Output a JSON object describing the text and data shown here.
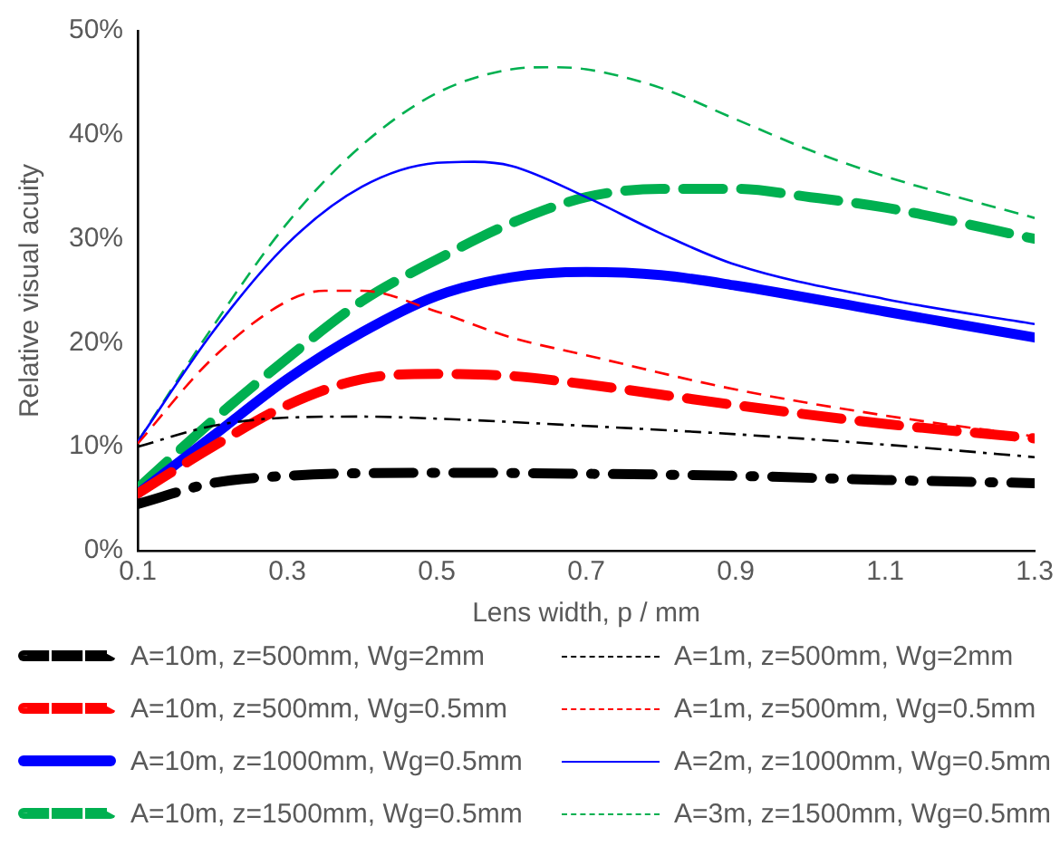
{
  "chart_data": {
    "type": "line",
    "xlabel": "Lens width, p / mm",
    "ylabel": "Relative visual acuity",
    "xlim": [
      0.1,
      1.3
    ],
    "xticks": [
      0.1,
      0.3,
      0.5,
      0.7,
      0.9,
      1.1,
      1.3
    ],
    "ylim": [
      0,
      50
    ],
    "yticks": [
      {
        "value": 0,
        "label": "0%"
      },
      {
        "value": 10,
        "label": "10%"
      },
      {
        "value": 20,
        "label": "20%"
      },
      {
        "value": 30,
        "label": "30%"
      },
      {
        "value": 40,
        "label": "40%"
      },
      {
        "value": 50,
        "label": "50%"
      }
    ],
    "grid": false,
    "legend": "bottom",
    "marker": "none",
    "series": [
      {
        "name": "A=10m, z=500mm, Wg=2mm",
        "color": "#000000",
        "line_style": "dashdot",
        "x": [
          0.1,
          0.2,
          0.3,
          0.5,
          0.7,
          0.9,
          1.1,
          1.3
        ],
        "values": [
          4.5,
          6.5,
          7.2,
          7.5,
          7.4,
          7.2,
          6.8,
          6.5
        ]
      },
      {
        "name": "A=1m, z=500mm, Wg=2mm",
        "color": "#000000",
        "line_style": "dashdot",
        "x": [
          0.1,
          0.2,
          0.3,
          0.4,
          0.5,
          0.7,
          0.9,
          1.1,
          1.3
        ],
        "values": [
          10,
          12,
          12.8,
          12.9,
          12.7,
          12,
          11.2,
          10.2,
          9
        ]
      },
      {
        "name": "A=10m, z=500mm, Wg=0.5mm",
        "color": "#ff0000",
        "line_style": "dashed",
        "x": [
          0.1,
          0.2,
          0.3,
          0.4,
          0.5,
          0.6,
          0.7,
          0.9,
          1.1,
          1.3
        ],
        "values": [
          5.5,
          10,
          14,
          16.5,
          17,
          16.8,
          16,
          14,
          12.2,
          10.8
        ]
      },
      {
        "name": "A=1m, z=500mm, Wg=0.5mm",
        "color": "#ff0000",
        "line_style": "dashed",
        "x": [
          0.1,
          0.2,
          0.3,
          0.35,
          0.4,
          0.5,
          0.6,
          0.7,
          0.9,
          1.1,
          1.3
        ],
        "values": [
          10.3,
          18.5,
          24,
          25,
          25,
          23,
          20.5,
          18.8,
          15.5,
          13,
          11
        ]
      },
      {
        "name": "A=10m, z=1000mm, Wg=0.5mm",
        "color": "#0000ff",
        "line_style": "solid",
        "x": [
          0.1,
          0.2,
          0.3,
          0.4,
          0.5,
          0.6,
          0.7,
          0.8,
          0.9,
          1.1,
          1.3
        ],
        "values": [
          5.5,
          11,
          16.5,
          21,
          24.5,
          26.3,
          26.8,
          26.5,
          25.5,
          23,
          20.5
        ]
      },
      {
        "name": "A=2m, z=1000mm, Wg=0.5mm",
        "color": "#0000ff",
        "line_style": "solid",
        "x": [
          0.1,
          0.2,
          0.3,
          0.4,
          0.5,
          0.55,
          0.6,
          0.7,
          0.8,
          0.9,
          1.1,
          1.3
        ],
        "values": [
          10.5,
          21,
          29.5,
          35,
          37.3,
          37.4,
          37,
          34,
          30.5,
          27.5,
          24.2,
          21.8
        ]
      },
      {
        "name": "A=10m, z=1500mm, Wg=0.5mm",
        "color": "#00b050",
        "line_style": "dashed",
        "x": [
          0.1,
          0.2,
          0.3,
          0.4,
          0.5,
          0.6,
          0.7,
          0.8,
          0.9,
          1.0,
          1.1,
          1.3
        ],
        "values": [
          6,
          12.5,
          18.5,
          24,
          28,
          31.5,
          34,
          34.8,
          34.8,
          34,
          33,
          30
        ]
      },
      {
        "name": "A=3m, z=1500mm, Wg=0.5mm",
        "color": "#00b050",
        "line_style": "dashed",
        "x": [
          0.1,
          0.2,
          0.3,
          0.4,
          0.5,
          0.6,
          0.65,
          0.7,
          0.8,
          0.9,
          1.0,
          1.1,
          1.3
        ],
        "values": [
          10.5,
          21.5,
          31.5,
          39,
          44,
          46.3,
          46.5,
          46.3,
          44.5,
          41.5,
          38.5,
          36,
          32
        ]
      }
    ]
  }
}
